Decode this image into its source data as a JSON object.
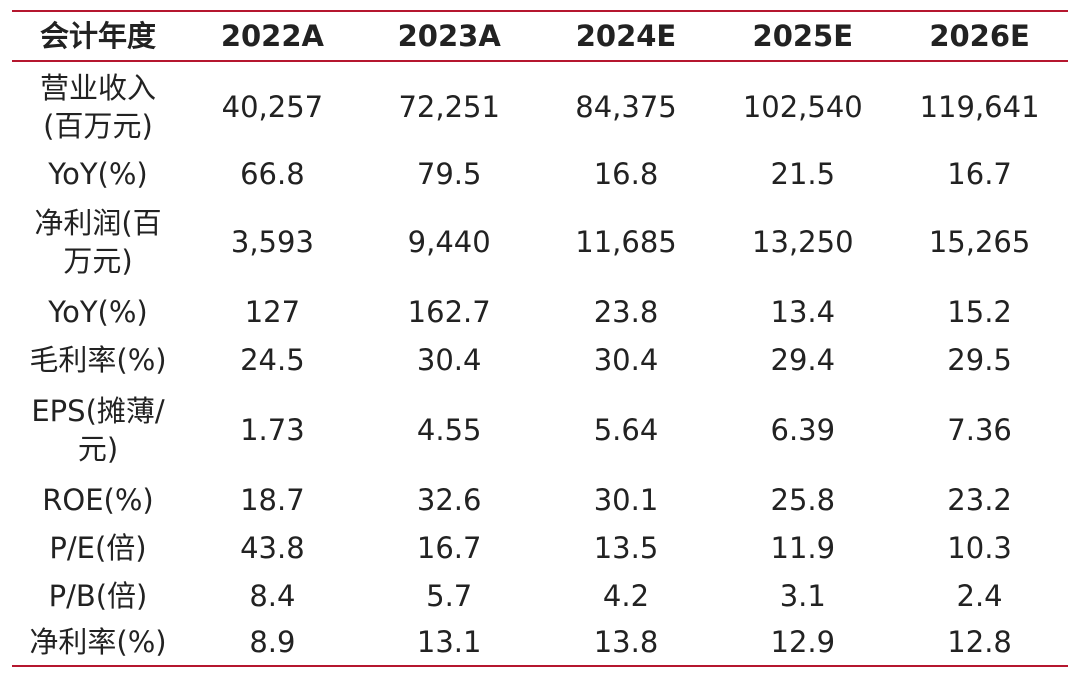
{
  "table": {
    "headers": [
      "会计年度",
      "2022A",
      "2023A",
      "2024E",
      "2025E",
      "2026E"
    ],
    "rows": [
      {
        "label": "营业收入\n(百万元)",
        "values": [
          "40,257",
          "72,251",
          "84,375",
          "102,540",
          "119,641"
        ]
      },
      {
        "label": "YoY(%)",
        "values": [
          "66.8",
          "79.5",
          "16.8",
          "21.5",
          "16.7"
        ]
      },
      {
        "label": "净利润(百\n万元)",
        "values": [
          "3,593",
          "9,440",
          "11,685",
          "13,250",
          "15,265"
        ]
      },
      {
        "label": "YoY(%)",
        "values": [
          "127",
          "162.7",
          "23.8",
          "13.4",
          "15.2"
        ]
      },
      {
        "label": "毛利率(%)",
        "values": [
          "24.5",
          "30.4",
          "30.4",
          "29.4",
          "29.5"
        ]
      },
      {
        "label": "EPS(摊薄/\n元)",
        "values": [
          "1.73",
          "4.55",
          "5.64",
          "6.39",
          "7.36"
        ]
      },
      {
        "label": "ROE(%)",
        "values": [
          "18.7",
          "32.6",
          "30.1",
          "25.8",
          "23.2"
        ]
      },
      {
        "label": "P/E(倍)",
        "values": [
          "43.8",
          "16.7",
          "13.5",
          "11.9",
          "10.3"
        ]
      },
      {
        "label": "P/B(倍)",
        "values": [
          "8.4",
          "5.7",
          "4.2",
          "3.1",
          "2.4"
        ]
      },
      {
        "label": "净利率(%)",
        "values": [
          "8.9",
          "13.1",
          "13.8",
          "12.9",
          "12.8"
        ]
      }
    ]
  },
  "colors": {
    "rule": "#b5172f",
    "text": "#222222"
  }
}
